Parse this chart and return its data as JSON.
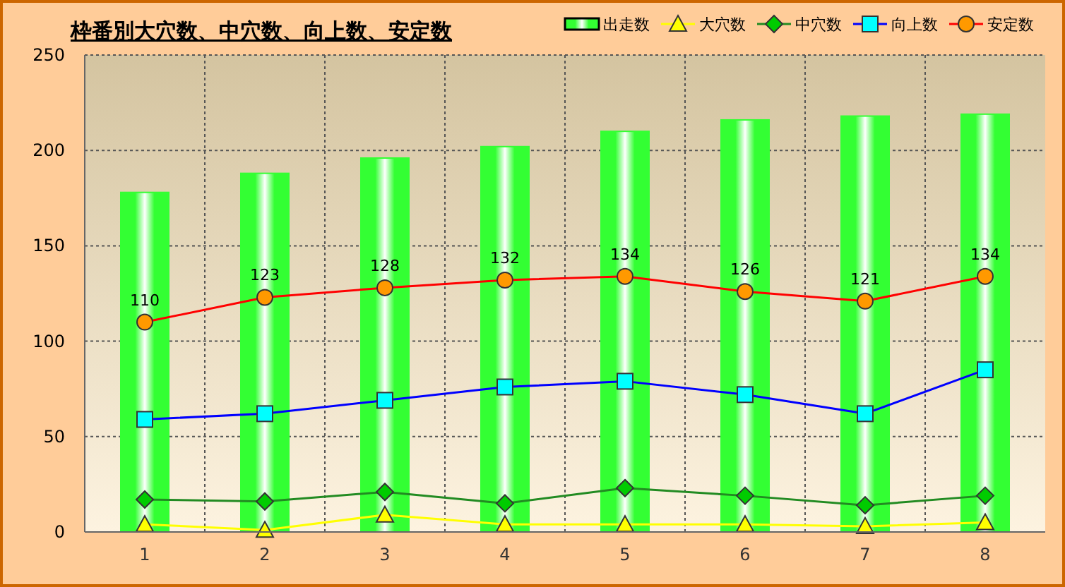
{
  "chart_data": {
    "type": "bar",
    "title": "枠番別大穴数、中穴数、向上数、安定数",
    "categories": [
      "1",
      "2",
      "3",
      "4",
      "5",
      "6",
      "7",
      "8"
    ],
    "ylim": [
      0,
      250
    ],
    "yticks": [
      0,
      50,
      100,
      150,
      200,
      250
    ],
    "grid": true,
    "legend": "top right",
    "series": [
      {
        "name": "出走数",
        "color": "#33ff33",
        "values": [
          178,
          188,
          196,
          202,
          210,
          216,
          218,
          219
        ]
      },
      {
        "name": "大穴数",
        "type": "line",
        "color": "#ffff00",
        "marker": "triangle",
        "values": [
          4,
          1,
          9,
          4,
          4,
          4,
          3,
          5
        ]
      },
      {
        "name": "中穴数",
        "type": "line",
        "color": "#228b22",
        "marker": "diamond",
        "values": [
          17,
          16,
          21,
          15,
          23,
          19,
          14,
          19
        ]
      },
      {
        "name": "向上数",
        "type": "line",
        "color": "#0000ff",
        "marker": "square",
        "values": [
          59,
          62,
          69,
          76,
          79,
          72,
          62,
          85
        ]
      },
      {
        "name": "安定数",
        "type": "line",
        "color": "#ff0000",
        "marker": "circle",
        "values": [
          110,
          123,
          128,
          132,
          134,
          126,
          121,
          134
        ],
        "value_labels": [
          "110",
          "123",
          "128",
          "132",
          "134",
          "126",
          "121",
          "134"
        ]
      }
    ]
  }
}
